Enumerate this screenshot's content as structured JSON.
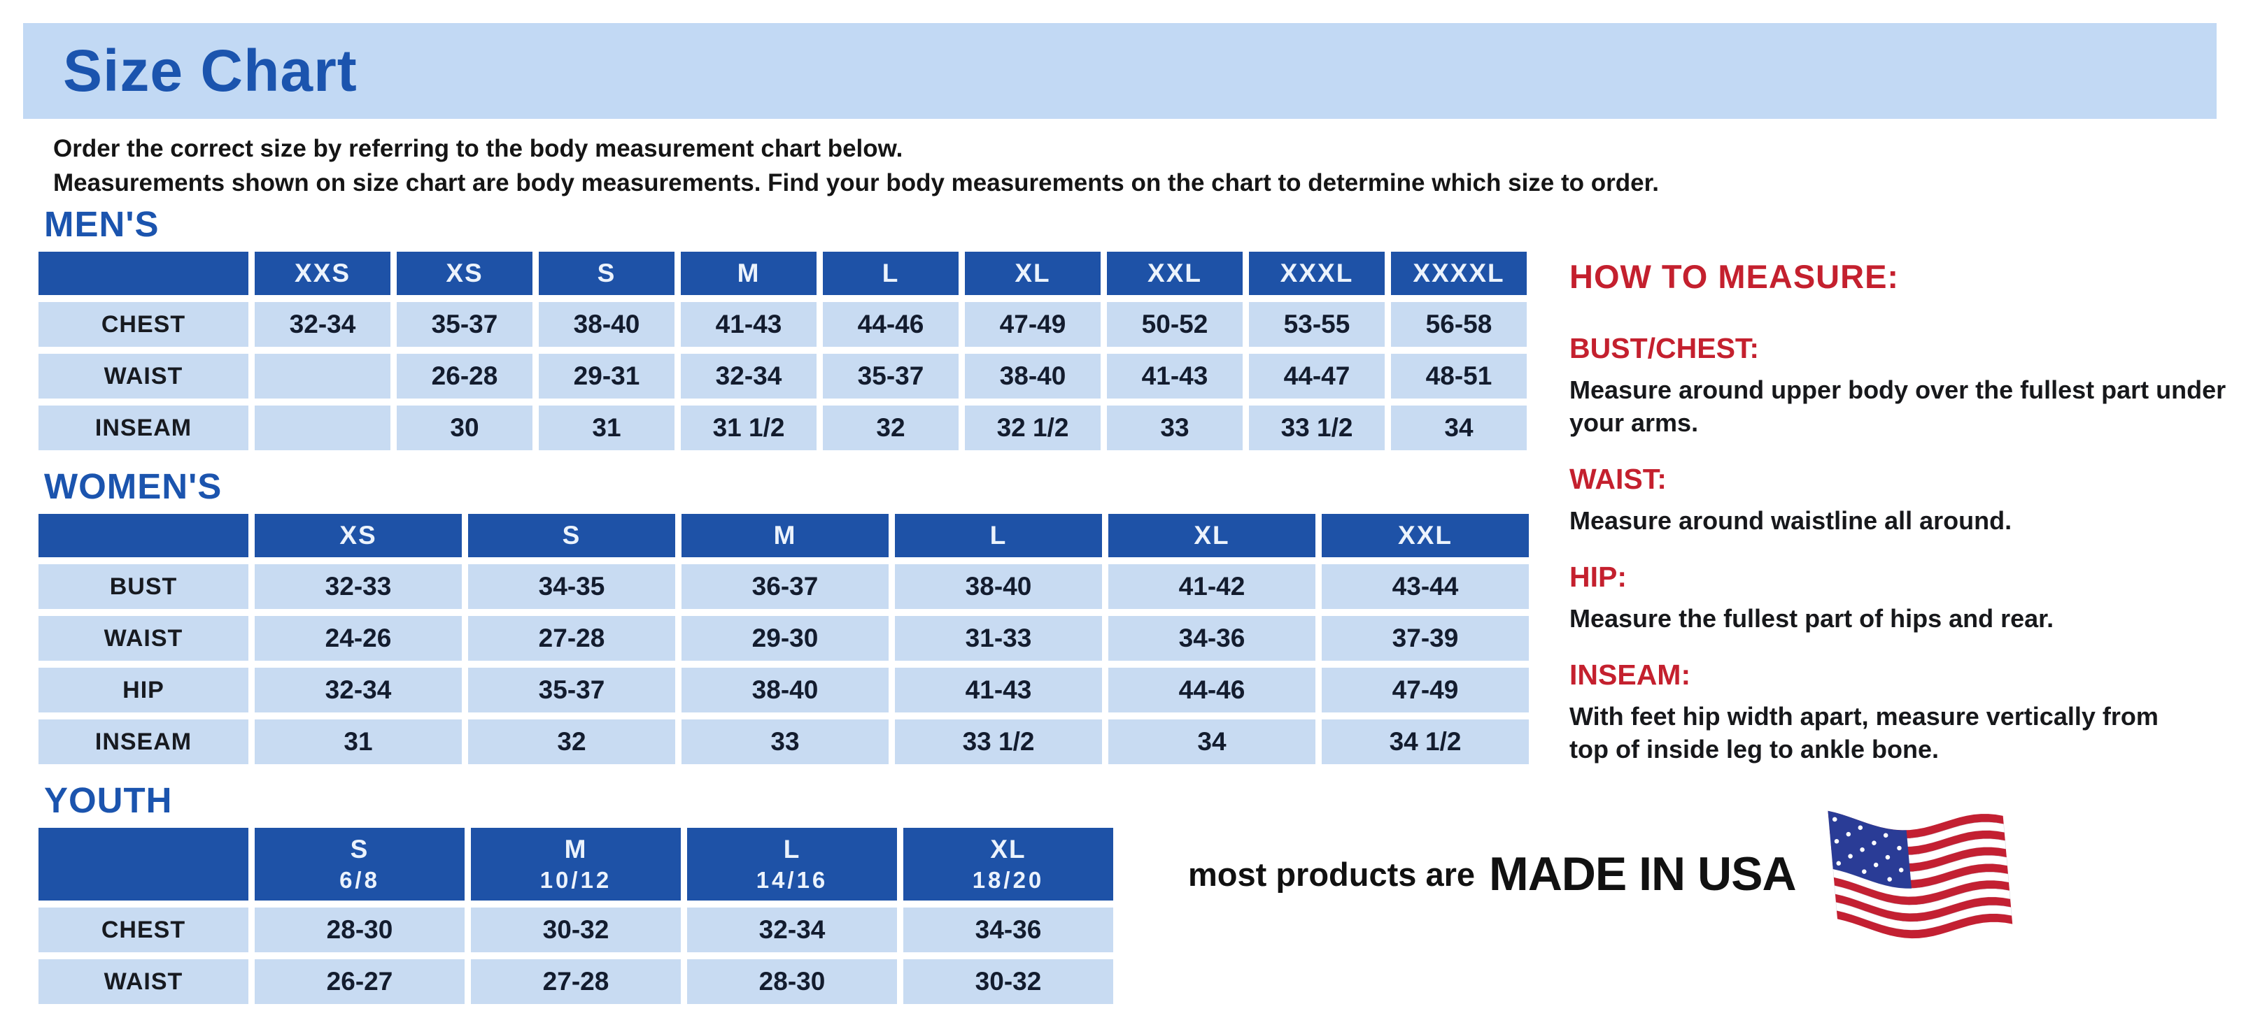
{
  "page": {
    "title": "Size Chart",
    "intro_line1": "Order the correct size by referring to the body measurement chart below.",
    "intro_line2": "Measurements shown on size chart are body measurements.  Find your body measurements on the chart to determine which size to order."
  },
  "colors": {
    "banner_bg": "#c2d9f4",
    "heading_blue": "#1b54ae",
    "table_header_bg": "#1e52a7",
    "table_cell_bg": "#c8dbf2",
    "accent_red": "#c4202e",
    "text_dark": "#131c2e"
  },
  "tables": [
    {
      "id": "mens",
      "heading": "MEN'S",
      "columns": [
        {
          "size": "XXS",
          "range": ""
        },
        {
          "size": "XS",
          "range": ""
        },
        {
          "size": "S",
          "range": ""
        },
        {
          "size": "M",
          "range": ""
        },
        {
          "size": "L",
          "range": ""
        },
        {
          "size": "XL",
          "range": ""
        },
        {
          "size": "XXL",
          "range": ""
        },
        {
          "size": "XXXL",
          "range": ""
        },
        {
          "size": "XXXXL",
          "range": ""
        }
      ],
      "rows": [
        {
          "label": "CHEST",
          "values": [
            "32-34",
            "35-37",
            "38-40",
            "41-43",
            "44-46",
            "47-49",
            "50-52",
            "53-55",
            "56-58"
          ]
        },
        {
          "label": "WAIST",
          "values": [
            "",
            "26-28",
            "29-31",
            "32-34",
            "35-37",
            "38-40",
            "41-43",
            "44-47",
            "48-51"
          ]
        },
        {
          "label": "INSEAM",
          "values": [
            "",
            "30",
            "31",
            "31 1/2",
            "32",
            "32 1/2",
            "33",
            "33 1/2",
            "34"
          ]
        }
      ]
    },
    {
      "id": "womens",
      "heading": "WOMEN'S",
      "columns": [
        {
          "size": "XS",
          "range": ""
        },
        {
          "size": "S",
          "range": ""
        },
        {
          "size": "M",
          "range": ""
        },
        {
          "size": "L",
          "range": ""
        },
        {
          "size": "XL",
          "range": ""
        },
        {
          "size": "XXL",
          "range": ""
        }
      ],
      "rows": [
        {
          "label": "BUST",
          "values": [
            "32-33",
            "34-35",
            "36-37",
            "38-40",
            "41-42",
            "43-44"
          ]
        },
        {
          "label": "WAIST",
          "values": [
            "24-26",
            "27-28",
            "29-30",
            "31-33",
            "34-36",
            "37-39"
          ]
        },
        {
          "label": "HIP",
          "values": [
            "32-34",
            "35-37",
            "38-40",
            "41-43",
            "44-46",
            "47-49"
          ]
        },
        {
          "label": "INSEAM",
          "values": [
            "31",
            "32",
            "33",
            "33 1/2",
            "34",
            "34 1/2"
          ]
        }
      ]
    },
    {
      "id": "youth",
      "heading": "YOUTH",
      "columns": [
        {
          "size": "S",
          "range": "6/8"
        },
        {
          "size": "M",
          "range": "10/12"
        },
        {
          "size": "L",
          "range": "14/16"
        },
        {
          "size": "XL",
          "range": "18/20"
        }
      ],
      "rows": [
        {
          "label": "CHEST",
          "values": [
            "28-30",
            "30-32",
            "32-34",
            "34-36"
          ]
        },
        {
          "label": "WAIST",
          "values": [
            "26-27",
            "27-28",
            "28-30",
            "30-32"
          ]
        }
      ]
    }
  ],
  "how_to_measure": {
    "title": "HOW TO MEASURE:",
    "items": [
      {
        "label": "BUST/CHEST:",
        "text": "Measure around upper body over the fullest part under your arms."
      },
      {
        "label": "WAIST:",
        "text": "Measure around waistline all around."
      },
      {
        "label": "HIP:",
        "text": "Measure the fullest part of hips and rear."
      },
      {
        "label": "INSEAM:",
        "text": "With feet hip width apart, measure vertically from top of inside leg to ankle bone."
      }
    ]
  },
  "footer": {
    "prefix": "most products are",
    "emphasis": "MADE IN USA",
    "icon": "usa-flag-icon",
    "flag_colors": {
      "red": "#c32032",
      "white": "#ffffff",
      "blue": "#2a3c96"
    }
  }
}
